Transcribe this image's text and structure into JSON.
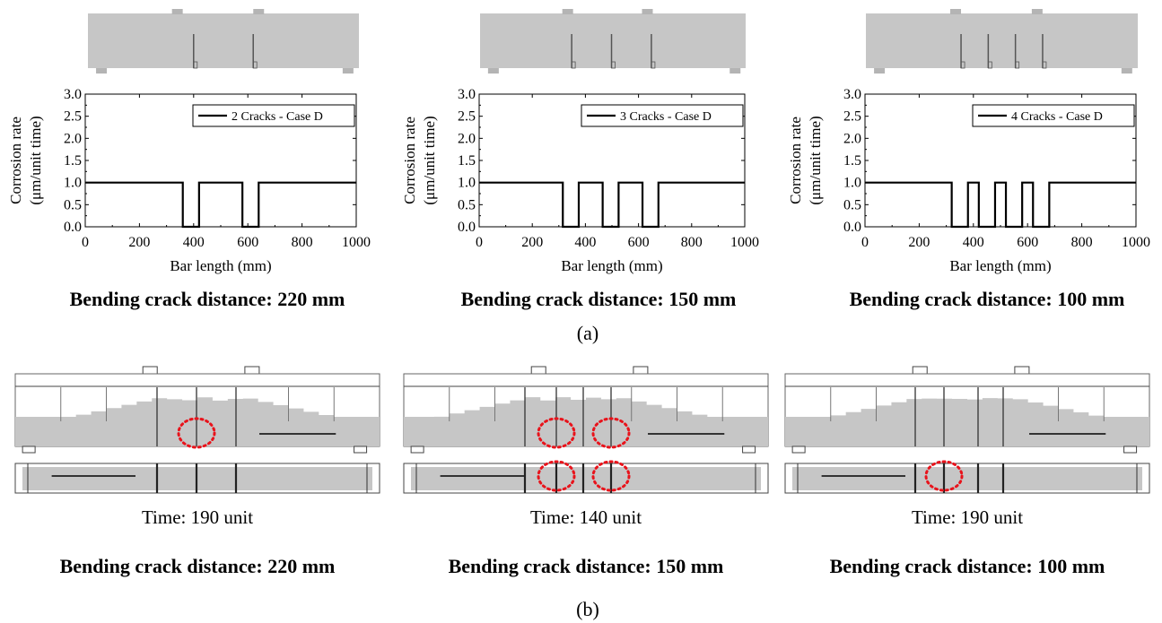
{
  "panel_labels": {
    "a": "(a)",
    "b": "(b)"
  },
  "colors": {
    "beam_fill": "#c6c6c6",
    "support_fill": "#b4b4b4",
    "crack": "#555555",
    "highlight_ellipse": "#e8131b",
    "line": "#000000"
  },
  "chart_data": [
    {
      "type": "line",
      "xlabel": "Bar length (mm)",
      "ylabel": "Corrosion rate (μm/unit time)",
      "ylabel_lines": [
        "Corrosion rate",
        "(μm/unit time)"
      ],
      "xlim": [
        0,
        1000
      ],
      "ylim": [
        0,
        3.0
      ],
      "xticks": [
        0,
        200,
        400,
        600,
        800,
        1000
      ],
      "yticks": [
        0.0,
        0.5,
        1.0,
        1.5,
        2.0,
        2.5,
        3.0
      ],
      "grid": false,
      "legend_position": "top-right",
      "series": [
        {
          "name": "2 Cracks - Case D",
          "x": [
            0,
            360,
            360,
            420,
            420,
            580,
            580,
            640,
            640,
            1000
          ],
          "y": [
            1,
            1,
            0,
            0,
            1,
            1,
            0,
            0,
            1,
            1
          ]
        }
      ],
      "caption": "Bending crack distance: 220 mm"
    },
    {
      "type": "line",
      "xlabel": "Bar length (mm)",
      "ylabel": "Corrosion rate (μm/unit time)",
      "ylabel_lines": [
        "Corrosion rate",
        "(μm/unit time)"
      ],
      "xlim": [
        0,
        1000
      ],
      "ylim": [
        0,
        3.0
      ],
      "xticks": [
        0,
        200,
        400,
        600,
        800,
        1000
      ],
      "yticks": [
        0.0,
        0.5,
        1.0,
        1.5,
        2.0,
        2.5,
        3.0
      ],
      "grid": false,
      "legend_position": "top-right",
      "series": [
        {
          "name": "3 Cracks - Case D",
          "x": [
            0,
            315,
            315,
            375,
            375,
            465,
            465,
            525,
            525,
            615,
            615,
            675,
            675,
            1000
          ],
          "y": [
            1,
            1,
            0,
            0,
            1,
            1,
            0,
            0,
            1,
            1,
            0,
            0,
            1,
            1
          ]
        }
      ],
      "caption": "Bending crack distance: 150 mm"
    },
    {
      "type": "line",
      "xlabel": "Bar length (mm)",
      "ylabel": "Corrosion rate (μm/unit time)",
      "ylabel_lines": [
        "Corrosion rate",
        "(μm/unit time)"
      ],
      "xlim": [
        0,
        1000
      ],
      "ylim": [
        0,
        3.0
      ],
      "xticks": [
        0,
        200,
        400,
        600,
        800,
        1000
      ],
      "yticks": [
        0.0,
        0.5,
        1.0,
        1.5,
        2.0,
        2.5,
        3.0
      ],
      "grid": false,
      "legend_position": "top-right",
      "series": [
        {
          "name": "4 Cracks - Case D",
          "x": [
            0,
            320,
            320,
            380,
            380,
            420,
            420,
            480,
            480,
            520,
            520,
            580,
            580,
            620,
            620,
            680,
            680,
            1000
          ],
          "y": [
            1,
            1,
            0,
            0,
            1,
            1,
            0,
            0,
            1,
            1,
            0,
            0,
            1,
            1,
            0,
            0,
            1,
            1
          ]
        }
      ],
      "caption": "Bending crack distance: 100 mm"
    }
  ],
  "damage_panels": [
    {
      "time_label": "Time: 190 unit",
      "caption": "Bending crack distance: 220 mm"
    },
    {
      "time_label": "Time: 140 unit",
      "caption": "Bending crack distance: 150 mm"
    },
    {
      "time_label": "Time: 190 unit",
      "caption": "Bending crack distance: 100 mm"
    }
  ]
}
